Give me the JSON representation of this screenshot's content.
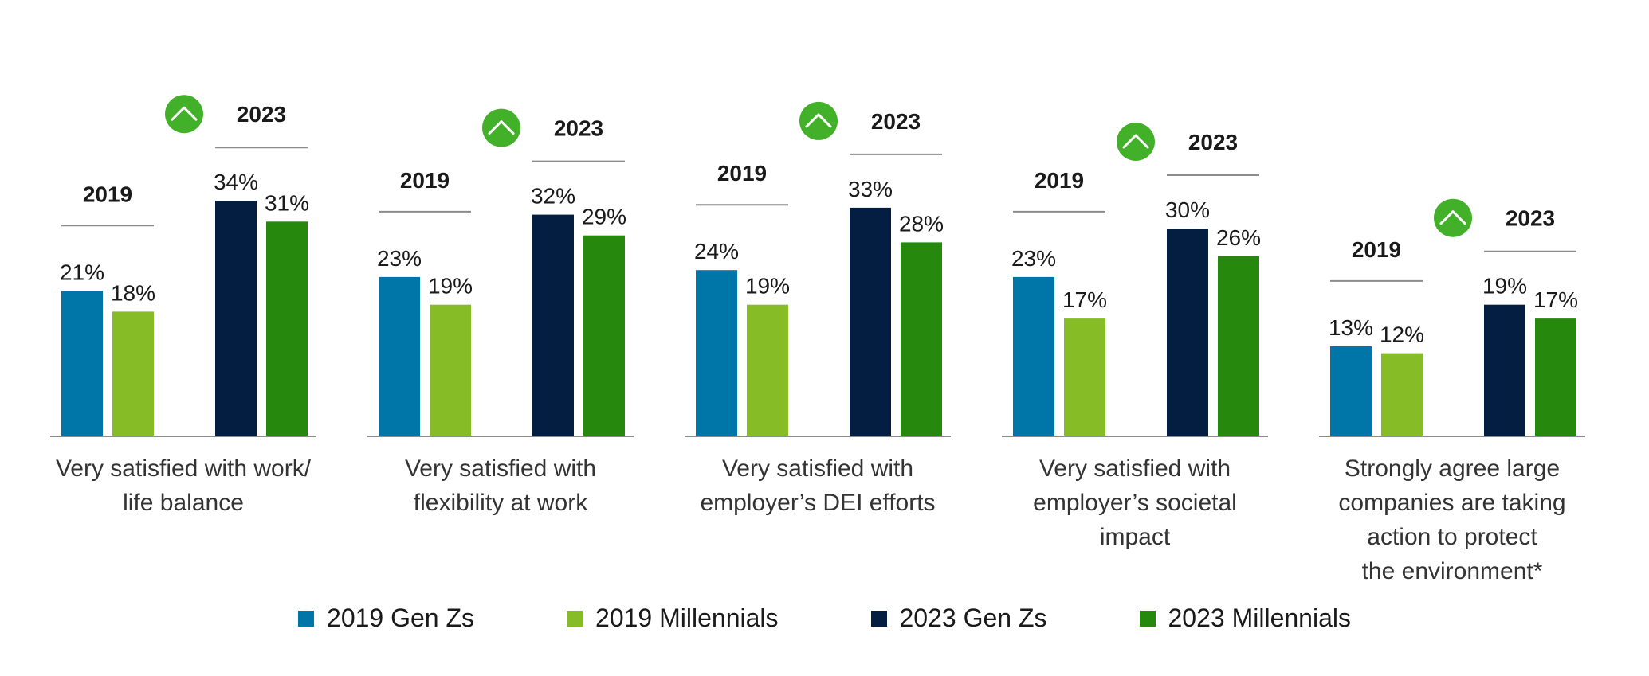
{
  "chart_data": {
    "type": "bar",
    "colors": {
      "2019 Gen Zs": "#0076A8",
      "2019 Millennials": "#86BC25",
      "2023 Gen Zs": "#041E42",
      "2023 Millennials": "#26890D",
      "up_icon": "#43B02A"
    },
    "legend": [
      "2019 Gen Zs",
      "2019 Millennials",
      "2023 Gen Zs",
      "2023 Millennials"
    ],
    "year_labels": [
      "2019",
      "2023"
    ],
    "icon": "chevron-up-icon",
    "ylim": [
      0,
      40
    ],
    "groups": [
      {
        "category": [
          "Very satisfied with work/",
          "life balance"
        ],
        "values": [
          21,
          18,
          34,
          31
        ],
        "labels": [
          "21%",
          "18%",
          "34%",
          "31%"
        ]
      },
      {
        "category": [
          "Very satisfied with",
          "flexibility at work"
        ],
        "values": [
          23,
          19,
          32,
          29
        ],
        "labels": [
          "23%",
          "19%",
          "32%",
          "29%"
        ]
      },
      {
        "category": [
          "Very satisfied with",
          "employer’s DEI efforts"
        ],
        "values": [
          24,
          19,
          33,
          28
        ],
        "labels": [
          "24%",
          "19%",
          "33%",
          "28%"
        ]
      },
      {
        "category": [
          "Very satisfied with",
          "employer’s societal",
          "impact"
        ],
        "values": [
          23,
          17,
          30,
          26
        ],
        "labels": [
          "23%",
          "17%",
          "30%",
          "26%"
        ]
      },
      {
        "category": [
          "Strongly agree large",
          "companies are taking",
          "action to protect",
          "the environment*"
        ],
        "values": [
          13,
          12,
          19,
          17
        ],
        "labels": [
          "13%",
          "12%",
          "19%",
          "17%"
        ]
      }
    ]
  }
}
